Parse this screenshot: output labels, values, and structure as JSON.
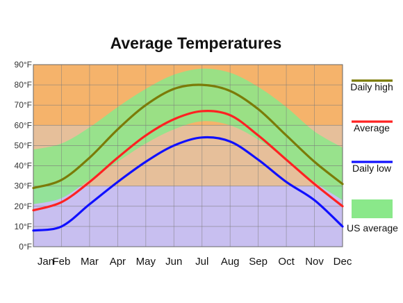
{
  "chart_data": {
    "type": "line",
    "title": "Average Temperatures",
    "categories": [
      "Jan",
      "Feb",
      "Mar",
      "Apr",
      "May",
      "Jun",
      "Jul",
      "Aug",
      "Sep",
      "Oct",
      "Nov",
      "Dec"
    ],
    "y_tick_labels": [
      "0°F",
      "10°F",
      "20°F",
      "30°F",
      "40°F",
      "50°F",
      "60°F",
      "70°F",
      "80°F",
      "90°F"
    ],
    "ylim": [
      0,
      90
    ],
    "grid": true,
    "legend_position": "right",
    "series": [
      {
        "name": "Daily high",
        "color": "#7b7b08",
        "values": [
          29,
          33,
          44,
          58,
          70,
          78,
          80,
          77,
          68,
          55,
          42,
          31
        ]
      },
      {
        "name": "Average",
        "color": "#ff2222",
        "values": [
          18,
          22,
          32,
          44,
          55,
          63,
          67,
          65,
          55,
          43,
          31,
          20
        ]
      },
      {
        "name": "Daily low",
        "color": "#1010ff",
        "values": [
          8,
          10,
          21,
          32,
          42,
          50,
          54,
          52,
          43,
          32,
          23,
          10
        ]
      }
    ],
    "band": {
      "name": "US average",
      "color": "#8ae88a",
      "lower": [
        21,
        24,
        33,
        42,
        51,
        58,
        62,
        60,
        53,
        43,
        32,
        23
      ],
      "upper": [
        48,
        51,
        59,
        69,
        78,
        85,
        88,
        86,
        79,
        69,
        57,
        49
      ]
    },
    "background_bands": [
      {
        "from": 60,
        "to": 90,
        "color": "#f5b36b"
      },
      {
        "from": 30,
        "to": 60,
        "color": "#e6bf9a"
      },
      {
        "from": 0,
        "to": 30,
        "color": "#c8bff0"
      }
    ]
  }
}
